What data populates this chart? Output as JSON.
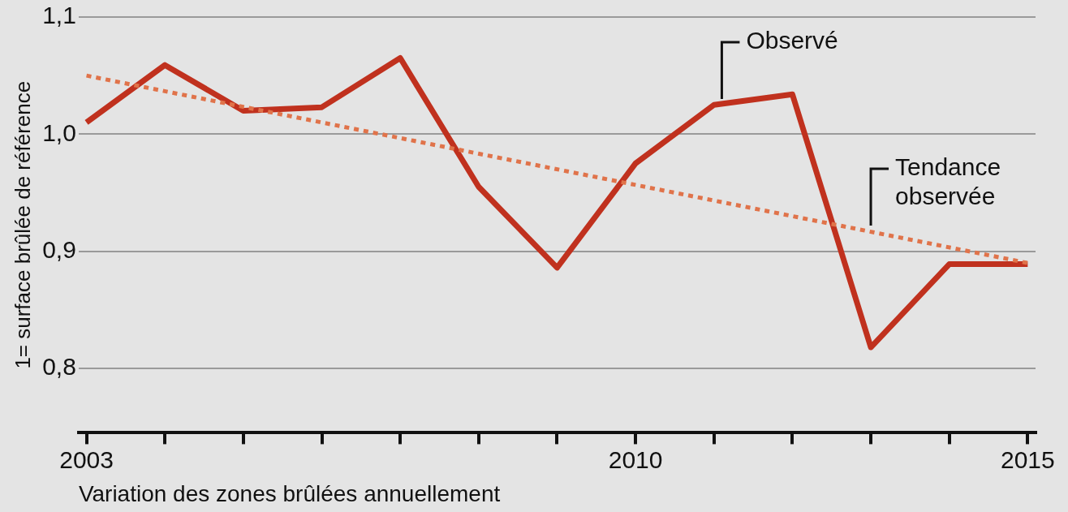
{
  "chart_data": {
    "type": "line",
    "xlabel": "Variation des zones brûlées annuellement",
    "ylabel": "1= surface brûlée de référence",
    "xlim": [
      2002.9,
      2015.1
    ],
    "xticks": [
      2003,
      {
        "value": 2004,
        "label": null
      },
      {
        "value": 2005,
        "label": null
      },
      {
        "value": 2006,
        "label": null
      },
      {
        "value": 2007,
        "label": null
      },
      {
        "value": 2008,
        "label": null
      },
      {
        "value": 2009,
        "label": null
      },
      2010,
      {
        "value": 2011,
        "label": null
      },
      {
        "value": 2012,
        "label": null
      },
      {
        "value": 2013,
        "label": null
      },
      {
        "value": 2014,
        "label": null
      },
      2015
    ],
    "ylim": [
      0.745,
      1.1
    ],
    "yticks": [
      {
        "value": 0.8,
        "label": "0,8"
      },
      {
        "value": 0.9,
        "label": "0,9"
      },
      {
        "value": 1.0,
        "label": "1,0"
      },
      {
        "value": 1.1,
        "label": "1,1"
      }
    ],
    "grid": "y",
    "legend": false,
    "series": [
      {
        "color": "#c0311e",
        "line_style": "solid",
        "x": [
          2003,
          2004,
          2005,
          2006,
          2007,
          2008,
          2009,
          2010,
          2011,
          2012,
          2013,
          2014,
          2015
        ],
        "values": [
          1.01,
          1.059,
          1.02,
          1.023,
          1.065,
          0.955,
          0.886,
          0.975,
          1.025,
          1.034,
          0.818,
          0.889,
          0.889
        ]
      },
      {
        "color": "#e0734a",
        "line_style": "dotted",
        "x": [
          2003,
          2015
        ],
        "values": [
          1.05,
          0.89
        ]
      }
    ],
    "annotations": [
      {
        "text": "Observé",
        "x": 2011.1,
        "y": 1.03
      },
      {
        "text": "Tendance observée",
        "x": 2013,
        "y": 0.922
      }
    ]
  }
}
